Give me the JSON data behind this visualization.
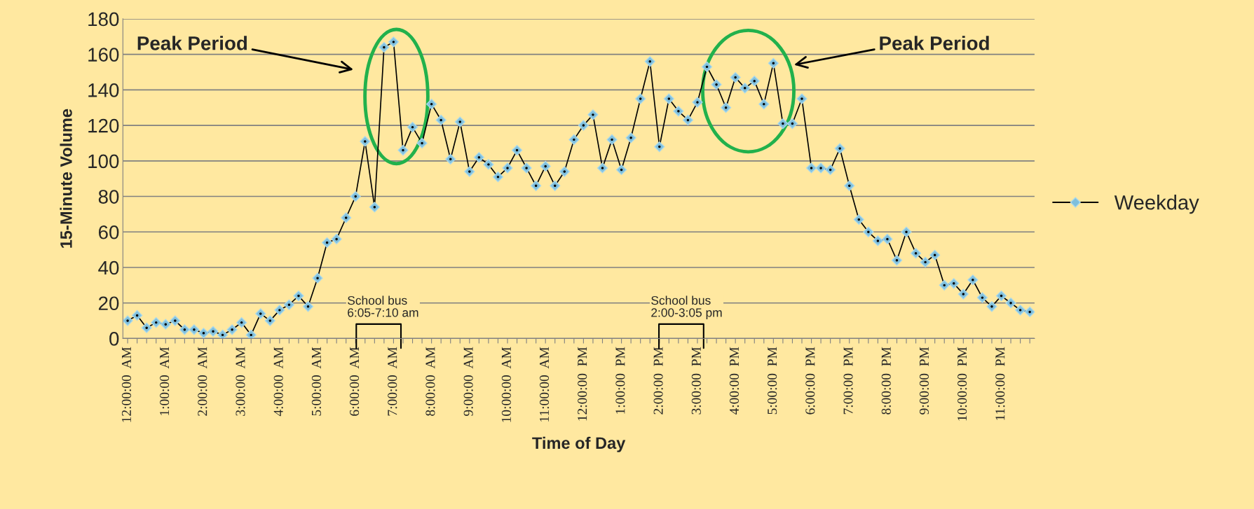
{
  "chart_data": {
    "type": "line",
    "xlabel": "Time of Day",
    "ylabel": "15-Minute Volume",
    "categories": [
      "12:00:00  AM",
      null,
      null,
      null,
      "1:00:00  AM",
      null,
      null,
      null,
      "2:00:00  AM",
      null,
      null,
      null,
      "3:00:00  AM",
      null,
      null,
      null,
      "4:00:00  AM",
      null,
      null,
      null,
      "5:00:00  AM",
      null,
      null,
      null,
      "6:00:00  AM",
      null,
      null,
      null,
      "7:00:00  AM",
      null,
      null,
      null,
      "8:00:00  AM",
      null,
      null,
      null,
      "9:00:00  AM",
      null,
      null,
      null,
      "10:00:00  AM",
      null,
      null,
      null,
      "11:00:00  AM",
      null,
      null,
      null,
      "12:00:00  PM",
      null,
      null,
      null,
      "1:00:00  PM",
      null,
      null,
      null,
      "2:00:00  PM",
      null,
      null,
      null,
      "3:00:00  PM",
      null,
      null,
      null,
      "4:00:00  PM",
      null,
      null,
      null,
      "5:00:00  PM",
      null,
      null,
      null,
      "6:00:00  PM",
      null,
      null,
      null,
      "7:00:00  PM",
      null,
      null,
      null,
      "8:00:00  PM",
      null,
      null,
      null,
      "9:00:00  PM",
      null,
      null,
      null,
      "10:00:00  PM",
      null,
      null,
      null,
      "11:00:00  PM",
      null,
      null,
      null
    ],
    "series": [
      {
        "name": "Weekday",
        "color": "#000000",
        "values": [
          10,
          13,
          6,
          9,
          8,
          10,
          5,
          5,
          3,
          4,
          2,
          5,
          9,
          2,
          14,
          10,
          16,
          19,
          24,
          18,
          34,
          54,
          56,
          68,
          80,
          111,
          74,
          164,
          167,
          106,
          119,
          110,
          132,
          123,
          101,
          122,
          94,
          102,
          98,
          91,
          96,
          106,
          96,
          86,
          97,
          86,
          94,
          112,
          120,
          126,
          96,
          112,
          95,
          113,
          135,
          156,
          108,
          135,
          128,
          123,
          133,
          153,
          143,
          130,
          147,
          141,
          145,
          132,
          155,
          121,
          121,
          135,
          96,
          96,
          95,
          107,
          86,
          67,
          60,
          55,
          56,
          44,
          60,
          48,
          43,
          47,
          30,
          31,
          25,
          33,
          23,
          18,
          24,
          20,
          16,
          15
        ]
      }
    ],
    "ylim": [
      0,
      180
    ],
    "yticks": [
      0,
      20,
      40,
      60,
      80,
      100,
      120,
      140,
      160,
      180
    ],
    "grid": "y",
    "legend": "right",
    "marker": "diamond",
    "line_style": "solid",
    "annotations": [
      "Peak Period",
      "Peak Period",
      "School bus\n6:05-7:10 am",
      "School bus\n2:00-3:05 pm"
    ]
  }
}
